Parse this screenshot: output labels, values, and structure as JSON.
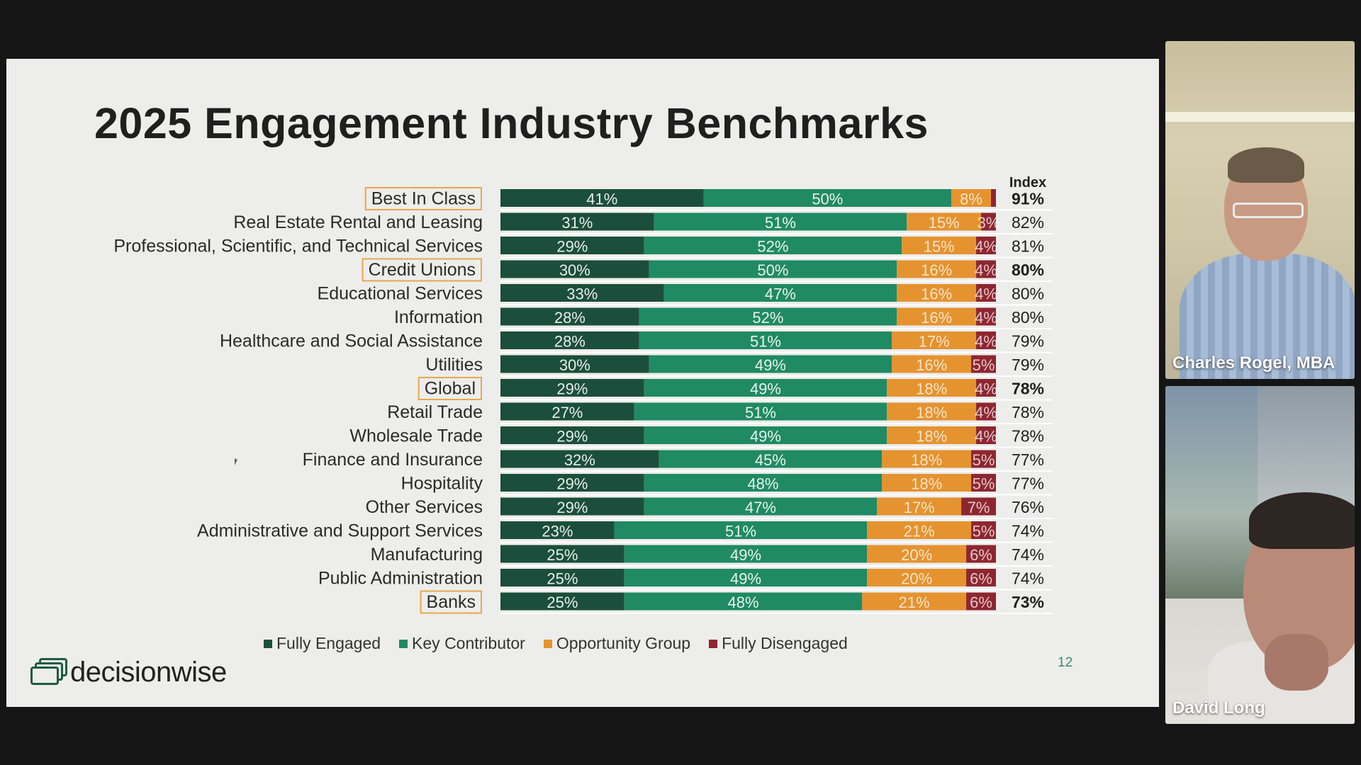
{
  "slide": {
    "title": "2025 Engagement Industry Benchmarks",
    "index_header": "Index",
    "page_number": "12",
    "logo_text": "decisionwise"
  },
  "colors": {
    "fully_engaged": "#1b4e3c",
    "key_contributor": "#1f8a63",
    "opportunity_group": "#e5932f",
    "fully_disengaged": "#8e2630",
    "highlight_border": "#e9a84a"
  },
  "legend": [
    {
      "label": "Fully Engaged",
      "color": "#1b4e3c"
    },
    {
      "label": "Key Contributor",
      "color": "#1f8a63"
    },
    {
      "label": "Opportunity Group",
      "color": "#e5932f"
    },
    {
      "label": "Fully Disengaged",
      "color": "#8e2630"
    }
  ],
  "chart_data": {
    "type": "bar",
    "orientation": "horizontal",
    "stacked": true,
    "categories": [
      "Best In Class",
      "Real Estate Rental and Leasing",
      "Professional, Scientific, and Technical Services",
      "Credit Unions",
      "Educational Services",
      "Information",
      "Healthcare and Social Assistance",
      "Utilities",
      "Global",
      "Retail Trade",
      "Wholesale Trade",
      "Finance and Insurance",
      "Hospitality",
      "Other Services",
      "Administrative and Support Services",
      "Manufacturing",
      "Public Administration",
      "Banks"
    ],
    "highlighted": [
      "Best In Class",
      "Credit Unions",
      "Global",
      "Banks"
    ],
    "series": [
      {
        "name": "Fully Engaged",
        "values": [
          41,
          31,
          29,
          30,
          33,
          28,
          28,
          30,
          29,
          27,
          29,
          32,
          29,
          29,
          23,
          25,
          25,
          25
        ]
      },
      {
        "name": "Key Contributor",
        "values": [
          50,
          51,
          52,
          50,
          47,
          52,
          51,
          49,
          49,
          51,
          49,
          45,
          48,
          47,
          51,
          49,
          49,
          48
        ]
      },
      {
        "name": "Opportunity Group",
        "values": [
          8,
          15,
          15,
          16,
          16,
          16,
          17,
          16,
          18,
          18,
          18,
          18,
          18,
          17,
          21,
          20,
          20,
          21
        ]
      },
      {
        "name": "Fully Disengaged",
        "values": [
          1,
          3,
          4,
          4,
          4,
          4,
          4,
          5,
          4,
          4,
          4,
          5,
          5,
          7,
          5,
          6,
          6,
          6
        ]
      }
    ],
    "hidden_labels": [
      {
        "series": 3,
        "row": 0
      }
    ],
    "index": [
      "91%",
      "82%",
      "81%",
      "80%",
      "80%",
      "80%",
      "79%",
      "79%",
      "78%",
      "78%",
      "78%",
      "77%",
      "77%",
      "76%",
      "74%",
      "74%",
      "74%",
      "73%"
    ],
    "xlim": [
      0,
      100
    ]
  },
  "participants": [
    {
      "name": "Charles Rogel, MBA"
    },
    {
      "name": "David Long"
    }
  ]
}
